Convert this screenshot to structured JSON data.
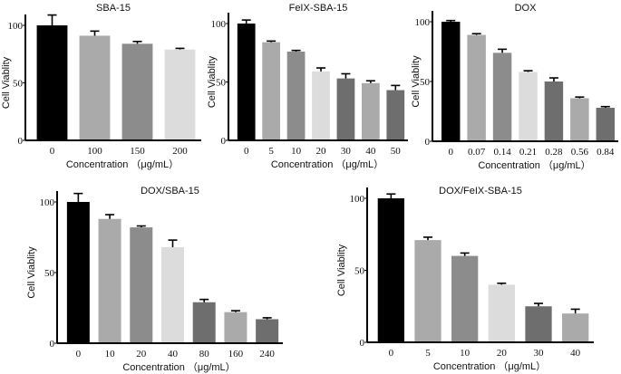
{
  "chart_data": [
    {
      "type": "bar",
      "title": "SBA-15",
      "xlabel": "Concentration （μg/mL）",
      "ylabel": "Cell Viablity",
      "ylim": [
        0,
        100
      ],
      "yticks": [
        0,
        50,
        100
      ],
      "categories": [
        "0",
        "100",
        "150",
        "200"
      ],
      "values": [
        100,
        91,
        84,
        79
      ],
      "errors": [
        9,
        4,
        2,
        1
      ],
      "colors": [
        "#000000",
        "#aaaaaa",
        "#8c8c8c",
        "#dcdcdc"
      ]
    },
    {
      "type": "bar",
      "title": "FeIX-SBA-15",
      "xlabel": "Concentration （μg/mL）",
      "ylabel": "Cell Viablity",
      "ylim": [
        0,
        100
      ],
      "yticks": [
        0,
        50,
        100
      ],
      "categories": [
        "0",
        "5",
        "10",
        "20",
        "30",
        "40",
        "50"
      ],
      "values": [
        100,
        84,
        76,
        59,
        53,
        49,
        43
      ],
      "errors": [
        3,
        1,
        1,
        3,
        4,
        2,
        4
      ],
      "colors": [
        "#000000",
        "#aaaaaa",
        "#8c8c8c",
        "#dcdcdc",
        "#6e6e6e",
        "#aaaaaa",
        "#6e6e6e"
      ]
    },
    {
      "type": "bar",
      "title": "DOX",
      "xlabel": "Concentration （μg/mL）",
      "ylabel": "Cell Viablity",
      "ylim": [
        0,
        100
      ],
      "yticks": [
        0,
        50,
        100
      ],
      "categories": [
        "0",
        "0.07",
        "0.14",
        "0.21",
        "0.28",
        "0.56",
        "0.84"
      ],
      "values": [
        100,
        89,
        74,
        58,
        50,
        36,
        28
      ],
      "errors": [
        1,
        1,
        3,
        1,
        3,
        1,
        1
      ],
      "colors": [
        "#000000",
        "#aaaaaa",
        "#8c8c8c",
        "#dcdcdc",
        "#6e6e6e",
        "#aaaaaa",
        "#6e6e6e"
      ]
    },
    {
      "type": "bar",
      "title": "DOX/SBA-15",
      "xlabel": "Concentration （μg/mL）",
      "ylabel": "Cell Viablity",
      "ylim": [
        0,
        100
      ],
      "yticks": [
        0,
        50,
        100
      ],
      "categories": [
        "0",
        "10",
        "20",
        "40",
        "80",
        "160",
        "240"
      ],
      "values": [
        100,
        88,
        82,
        68,
        29,
        22,
        17
      ],
      "errors": [
        6,
        3,
        1,
        5,
        2,
        1,
        1
      ],
      "colors": [
        "#000000",
        "#aaaaaa",
        "#8c8c8c",
        "#dcdcdc",
        "#6e6e6e",
        "#aaaaaa",
        "#6e6e6e"
      ]
    },
    {
      "type": "bar",
      "title": "DOX/FeIX-SBA-15",
      "xlabel": "Concentration （μg/mL）",
      "ylabel": "Cell Viablity",
      "ylim": [
        0,
        100
      ],
      "yticks": [
        0,
        50,
        100
      ],
      "categories": [
        "0",
        "5",
        "10",
        "20",
        "30",
        "40"
      ],
      "values": [
        100,
        71,
        60,
        40,
        25,
        20
      ],
      "errors": [
        3,
        2,
        2,
        1,
        2,
        3
      ],
      "colors": [
        "#000000",
        "#aaaaaa",
        "#8c8c8c",
        "#dcdcdc",
        "#6e6e6e",
        "#aaaaaa"
      ]
    }
  ]
}
